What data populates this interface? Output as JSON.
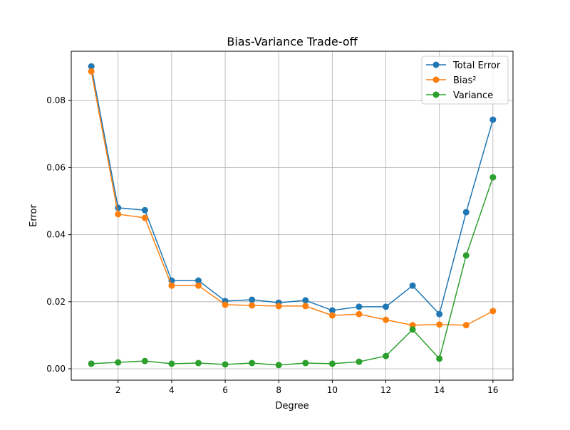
{
  "chart_data": {
    "type": "line",
    "title": "Bias-Variance Trade-off",
    "xlabel": "Degree",
    "ylabel": "Error",
    "xlim": [
      0.25,
      16.75
    ],
    "ylim": [
      -0.0034,
      0.0947
    ],
    "xticks": [
      2,
      4,
      6,
      8,
      10,
      12,
      14,
      16
    ],
    "yticks": [
      0.0,
      0.02,
      0.04,
      0.06,
      0.08
    ],
    "ytick_labels": [
      "0.00",
      "0.02",
      "0.04",
      "0.06",
      "0.08"
    ],
    "grid": true,
    "legend_position": "top-right",
    "x": [
      1,
      2,
      3,
      4,
      5,
      6,
      7,
      8,
      9,
      10,
      11,
      12,
      13,
      14,
      15,
      16
    ],
    "series": [
      {
        "name": "Total Error",
        "color": "#1f77b4",
        "values": [
          0.0902,
          0.048,
          0.0473,
          0.0263,
          0.0263,
          0.0202,
          0.0206,
          0.0197,
          0.0204,
          0.0174,
          0.0185,
          0.0185,
          0.0248,
          0.0163,
          0.0467,
          0.0743
        ]
      },
      {
        "name": "Bias²",
        "color": "#ff7f0e",
        "values": [
          0.0887,
          0.0461,
          0.045,
          0.0248,
          0.0248,
          0.0191,
          0.0189,
          0.0187,
          0.0187,
          0.0159,
          0.0163,
          0.0146,
          0.013,
          0.0132,
          0.013,
          0.0172
        ]
      },
      {
        "name": "Variance",
        "color": "#2ca02c",
        "values": [
          0.0015,
          0.0019,
          0.0023,
          0.0015,
          0.0017,
          0.0013,
          0.0017,
          0.0011,
          0.0017,
          0.0015,
          0.0021,
          0.0038,
          0.0117,
          0.003,
          0.0338,
          0.0571
        ]
      }
    ]
  }
}
